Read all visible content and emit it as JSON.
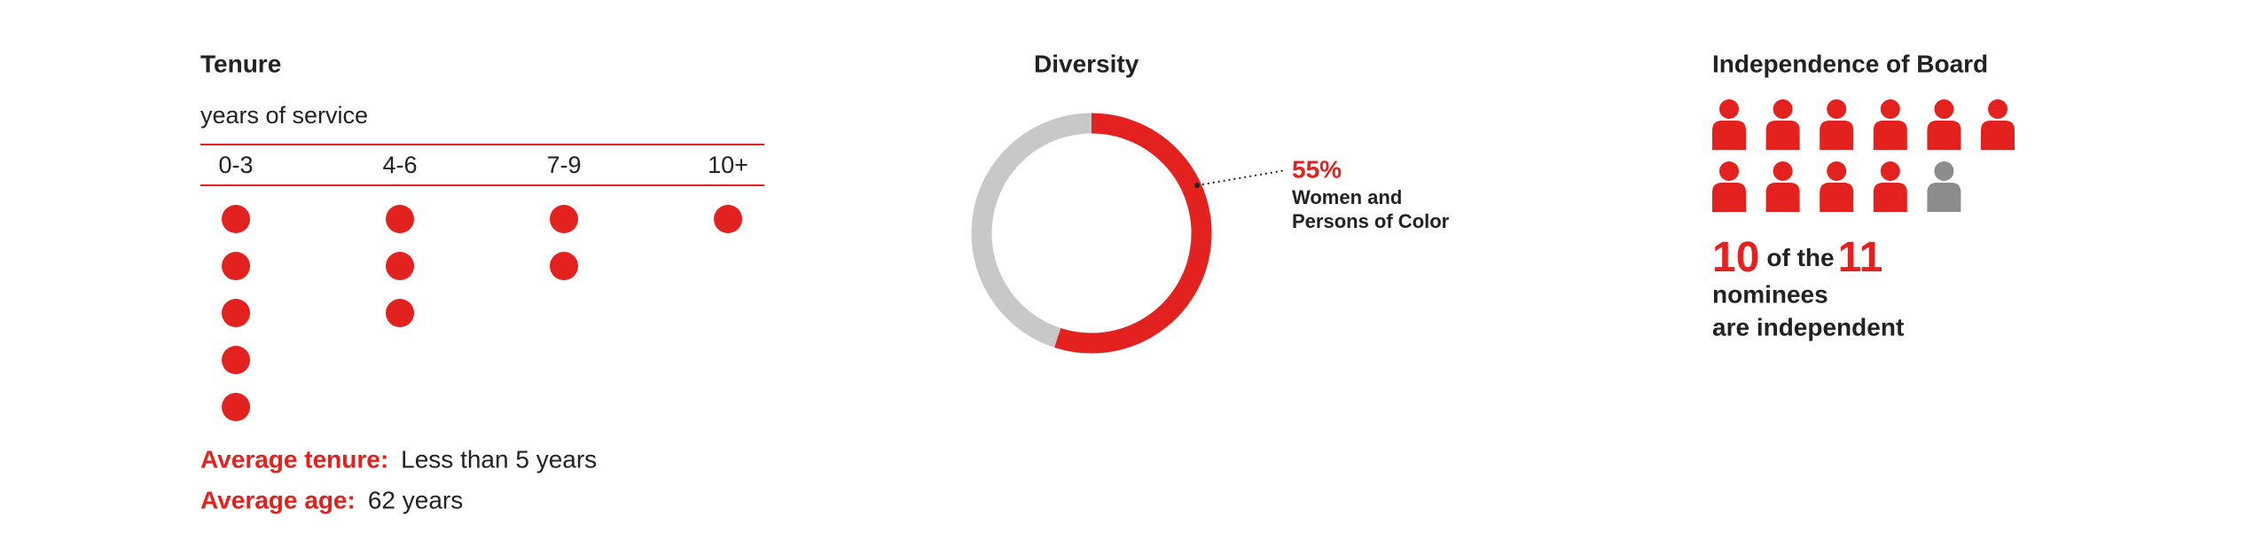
{
  "chart_data": [
    {
      "type": "dot",
      "title": "Tenure",
      "subtitle": "years of service",
      "categories": [
        "0-3",
        "4-6",
        "7-9",
        "10+"
      ],
      "values": [
        5,
        3,
        2,
        1
      ],
      "color": "#e3211e",
      "annotations": [
        {
          "label": "Average tenure:",
          "text": "Less than 5 years"
        },
        {
          "label": "Average age:",
          "text": "62 years"
        }
      ]
    },
    {
      "type": "donut",
      "title": "Diversity",
      "values": [
        55
      ],
      "value_labels": [
        "55%"
      ],
      "label": [
        "Women and",
        "Persons of Color"
      ],
      "colors": [
        "#e3211e",
        "#c8c8c8"
      ]
    },
    {
      "type": "pictograph",
      "title": "Independence of Board",
      "values": [
        10,
        11
      ],
      "caption": [
        "of the",
        "nominees",
        "are independent"
      ],
      "colors": [
        "#e3211e",
        "#8c8c8c"
      ]
    }
  ]
}
